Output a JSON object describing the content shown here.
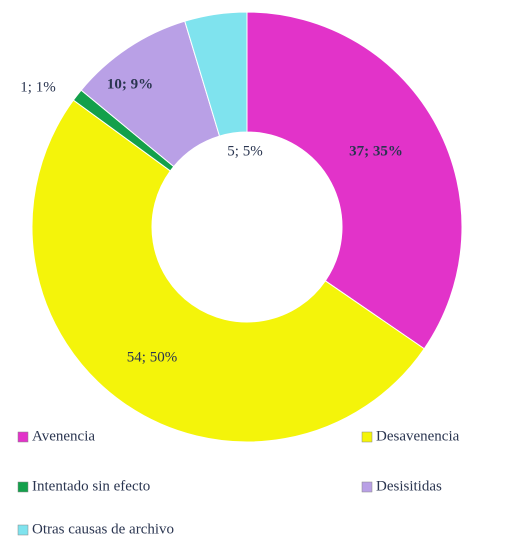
{
  "chart_data": {
    "type": "donut",
    "categories": [
      "Avenencia",
      "Desavenencia",
      "Intentado sin efecto",
      "Desisitidas",
      "Otras causas de archivo"
    ],
    "values": [
      37,
      54,
      1,
      10,
      5
    ],
    "value_labels": [
      "37; 35%",
      "54; 50%",
      "1; 1%",
      "10; 9%",
      "5; 5%"
    ],
    "colors": [
      "#e233c9",
      "#f4f40a",
      "#13a04b",
      "#b9a0e6",
      "#7fe3ee"
    ],
    "legend": "bottom"
  }
}
